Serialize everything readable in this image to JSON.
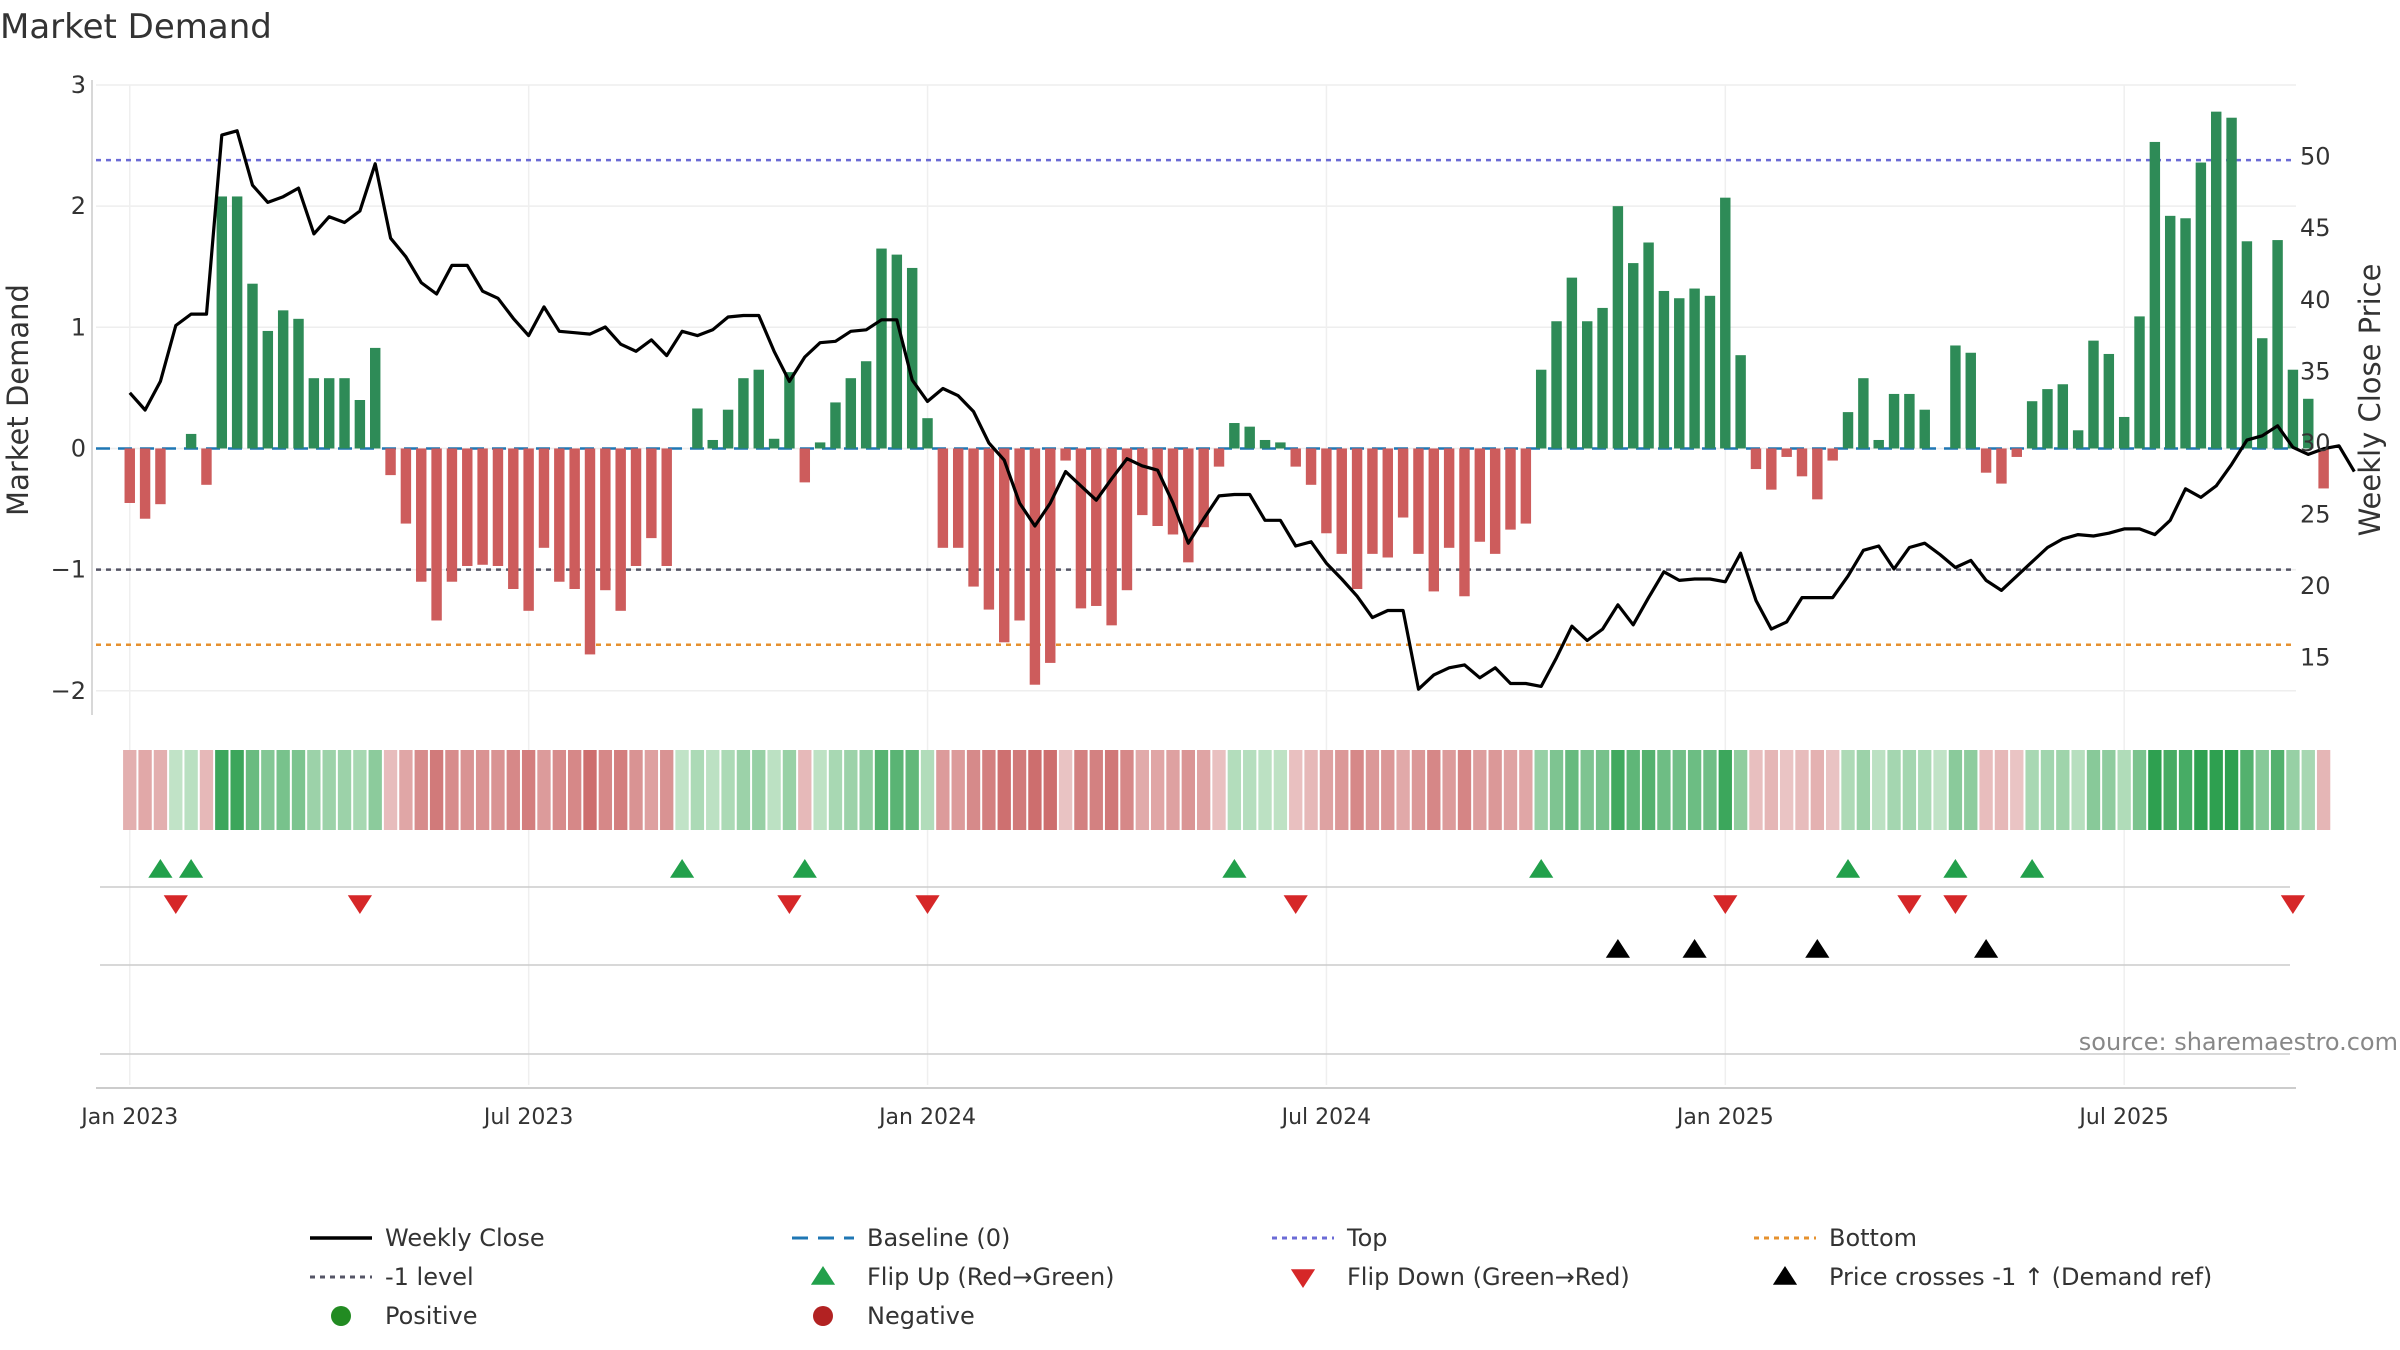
{
  "chart_data": {
    "type": "bar",
    "title": "Market Demand",
    "ylabel": "Market Demand",
    "ylabel_right": "Weekly Close Price",
    "ylim": [
      -2.2,
      3.0
    ],
    "ylim_right": [
      11,
      55
    ],
    "yticks": [
      -2,
      -1,
      0,
      1,
      2,
      3
    ],
    "yticks_right": [
      15,
      20,
      25,
      30,
      35,
      40,
      45,
      50
    ],
    "x_start": "2023-01-02",
    "x_step_days": 7,
    "xtick_labels": [
      "Jan 2023",
      "Jul 2023",
      "Jan 2024",
      "Jul 2024",
      "Jan 2025",
      "Jul 2025"
    ],
    "xtick_weeks": [
      0,
      26,
      52,
      78,
      104,
      130
    ],
    "x_range_weeks": [
      -2.2,
      141.2
    ],
    "top_level": 2.38,
    "bottom_level": -1.62,
    "minus_one_level": -1,
    "demand": [
      -0.45,
      -0.58,
      -0.46,
      0.0,
      0.12,
      -0.3,
      2.08,
      2.08,
      1.36,
      0.97,
      1.14,
      1.07,
      0.58,
      0.58,
      0.58,
      0.4,
      0.83,
      -0.22,
      -0.62,
      -1.1,
      -1.42,
      -1.1,
      -0.97,
      -0.96,
      -0.97,
      -1.16,
      -1.34,
      -0.82,
      -1.1,
      -1.16,
      -1.7,
      -1.17,
      -1.34,
      -0.97,
      -0.74,
      -0.97,
      0.0,
      0.33,
      0.07,
      0.32,
      0.58,
      0.65,
      0.08,
      0.63,
      -0.28,
      0.05,
      0.38,
      0.58,
      0.72,
      1.65,
      1.6,
      1.49,
      0.25,
      -0.82,
      -0.82,
      -1.14,
      -1.33,
      -1.6,
      -1.42,
      -1.95,
      -1.77,
      -0.1,
      -1.32,
      -1.3,
      -1.46,
      -1.17,
      -0.55,
      -0.64,
      -0.71,
      -0.94,
      -0.65,
      -0.15,
      0.21,
      0.18,
      0.07,
      0.05,
      -0.15,
      -0.3,
      -0.7,
      -0.87,
      -1.16,
      -0.87,
      -0.9,
      -0.57,
      -0.87,
      -1.18,
      -0.82,
      -1.22,
      -0.77,
      -0.87,
      -0.67,
      -0.62,
      0.65,
      1.05,
      1.41,
      1.05,
      1.16,
      2.0,
      1.53,
      1.7,
      1.3,
      1.24,
      1.32,
      1.26,
      2.07,
      0.77,
      -0.17,
      -0.34,
      -0.07,
      -0.23,
      -0.42,
      -0.1,
      0.3,
      0.58,
      0.07,
      0.45,
      0.45,
      0.32,
      0.0,
      0.85,
      0.79,
      -0.2,
      -0.29,
      -0.07,
      0.39,
      0.49,
      0.53,
      0.15,
      0.89,
      0.78,
      0.26,
      1.09,
      2.53,
      1.92,
      1.9,
      2.36,
      2.78,
      2.73,
      1.71,
      0.91,
      1.72,
      0.65,
      0.41,
      -0.33
    ],
    "weekly_close": [
      33.5,
      32.3,
      34.3,
      38.2,
      39.0,
      39.0,
      51.5,
      51.8,
      48.0,
      46.8,
      47.2,
      47.8,
      44.6,
      45.8,
      45.4,
      46.2,
      49.5,
      44.3,
      43.0,
      41.2,
      40.4,
      42.4,
      42.4,
      40.6,
      40.1,
      38.7,
      37.5,
      39.5,
      37.8,
      37.7,
      37.6,
      38.1,
      36.9,
      36.4,
      37.2,
      36.1,
      37.8,
      37.5,
      37.9,
      38.8,
      38.9,
      38.9,
      36.4,
      34.3,
      36.0,
      37.0,
      37.1,
      37.8,
      37.9,
      38.6,
      38.6,
      34.4,
      32.9,
      33.8,
      33.3,
      32.2,
      30.0,
      28.8,
      25.8,
      24.2,
      25.8,
      28.0,
      27.0,
      26.0,
      27.5,
      28.9,
      28.4,
      28.1,
      25.8,
      23.0,
      24.7,
      26.3,
      26.4,
      26.4,
      24.6,
      24.6,
      22.8,
      23.1,
      21.6,
      20.5,
      19.3,
      17.8,
      18.3,
      18.3,
      12.8,
      13.8,
      14.3,
      14.5,
      13.6,
      14.3,
      13.2,
      13.2,
      13.0,
      15.0,
      17.2,
      16.2,
      17.0,
      18.7,
      17.3,
      19.2,
      21.0,
      20.4,
      20.5,
      20.5,
      20.3,
      22.3,
      19.0,
      17.0,
      17.5,
      19.2,
      19.2,
      19.2,
      20.7,
      22.5,
      22.8,
      21.2,
      22.7,
      23.0,
      22.2,
      21.3,
      21.8,
      20.4,
      19.7,
      20.7,
      21.7,
      22.7,
      23.3,
      23.6,
      23.5,
      23.7,
      24.0,
      24.0,
      23.6,
      24.6,
      26.8,
      26.2,
      27.0,
      28.5,
      30.2,
      30.5,
      31.2,
      29.7,
      29.2,
      29.6,
      29.8,
      28.0
    ],
    "flip_up_weeks": [
      2,
      4,
      36,
      44,
      72,
      92,
      112,
      119,
      124
    ],
    "flip_down_weeks": [
      3,
      15,
      43,
      52,
      76,
      104,
      116,
      119,
      141
    ],
    "price_cross_weeks": [
      97,
      102,
      110,
      121
    ],
    "colors": {
      "positive_bar": "#2e8b57",
      "negative_bar": "#cd5c5c",
      "close_line": "#000000",
      "baseline": "#1f77b4",
      "top_line": "#6b6bd6",
      "minus_one_line": "#555566",
      "bottom_line": "#e6912e",
      "flip_up": "#22a04b",
      "flip_down": "#d62728",
      "price_cross": "#000000",
      "positive_dot": "#228b22",
      "negative_dot": "#b22222"
    },
    "source": "source: sharemaestro.com",
    "legend": [
      {
        "label": "Weekly Close",
        "kind": "solid",
        "color": "#000000"
      },
      {
        "label": "Baseline (0)",
        "kind": "dashed",
        "color": "#1f77b4"
      },
      {
        "label": "Top",
        "kind": "dotted",
        "color": "#6b6bd6"
      },
      {
        "label": "Bottom",
        "kind": "dotted",
        "color": "#e6912e"
      },
      {
        "label": "-1 level",
        "kind": "dotted",
        "color": "#555566"
      },
      {
        "label": "Flip Up (Red→Green)",
        "kind": "tri-up",
        "color": "#22a04b"
      },
      {
        "label": "Flip Down (Green→Red)",
        "kind": "tri-down",
        "color": "#d62728"
      },
      {
        "label": "Price crosses -1 ↑ (Demand ref)",
        "kind": "tri-up",
        "color": "#000000"
      },
      {
        "label": "Positive",
        "kind": "dot",
        "color": "#228b22"
      },
      {
        "label": "Negative",
        "kind": "dot",
        "color": "#b22222"
      }
    ]
  }
}
